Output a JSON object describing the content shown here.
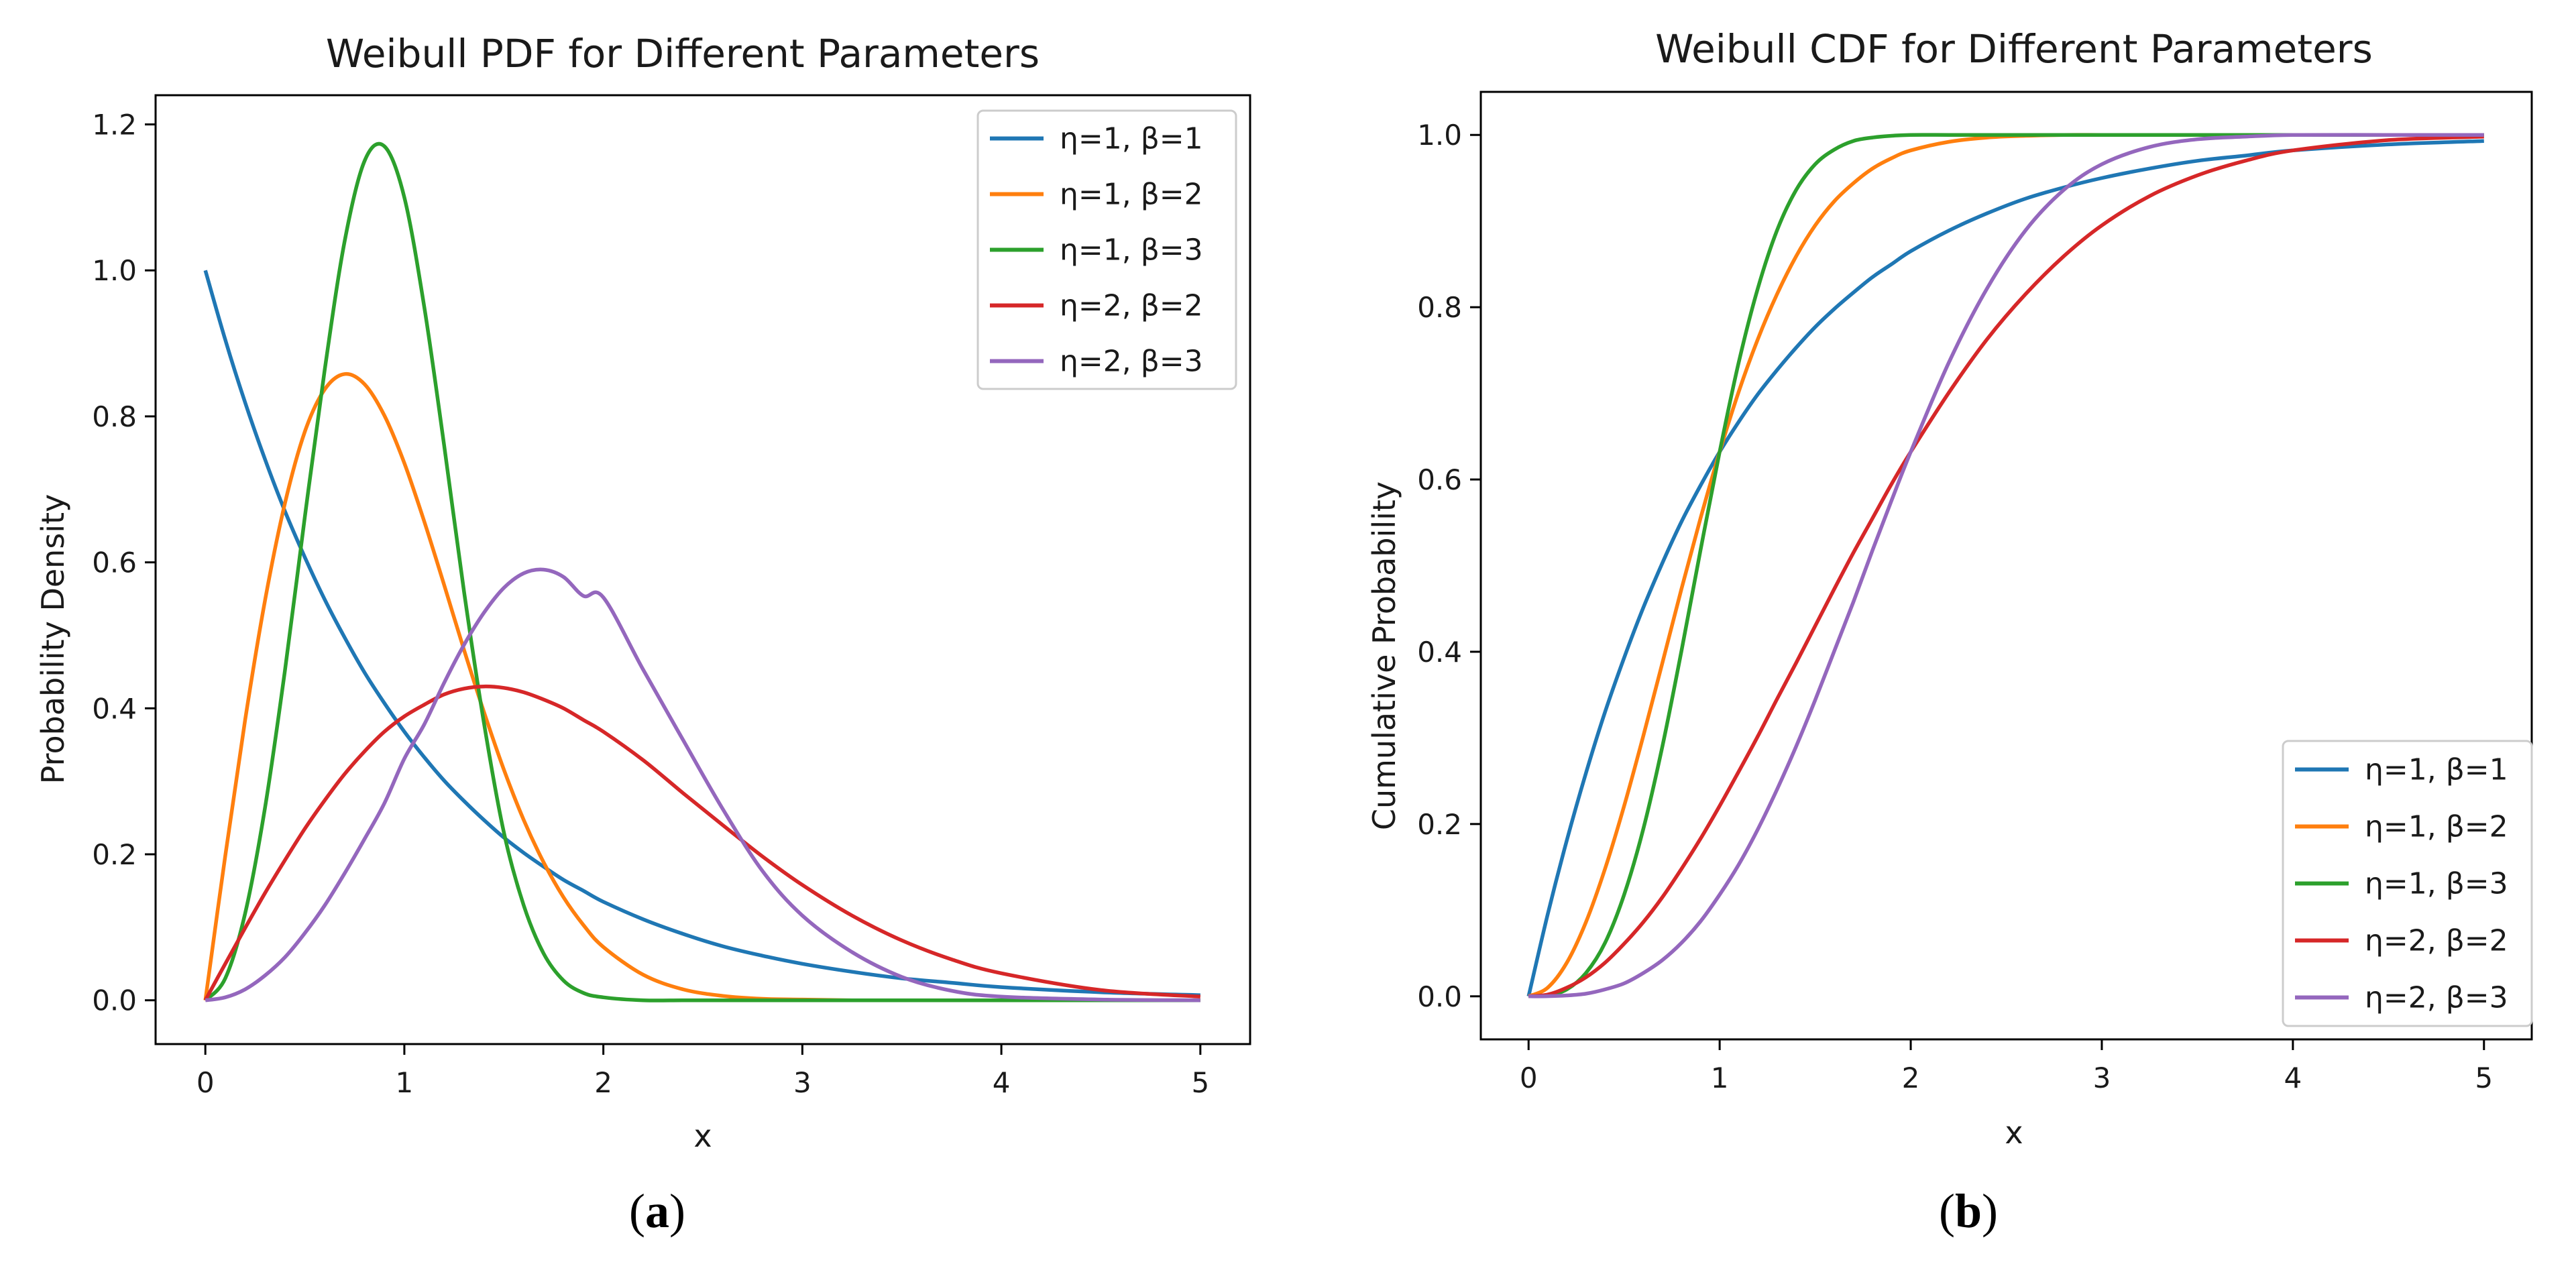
{
  "panels": {
    "a": {
      "caption_letter": "a"
    },
    "b": {
      "caption_letter": "b"
    }
  },
  "chart_data": [
    {
      "type": "line",
      "title": "Weibull PDF for Different Parameters",
      "xlabel": "x",
      "ylabel": "Probability Density",
      "xlim": [
        -0.25,
        5.25
      ],
      "ylim": [
        -0.06,
        1.24
      ],
      "xticks": [
        0,
        1,
        2,
        3,
        4,
        5
      ],
      "yticks": [
        0.0,
        0.2,
        0.4,
        0.6,
        0.8,
        1.0,
        1.2
      ],
      "xtick_labels": [
        "0",
        "1",
        "2",
        "3",
        "4",
        "5"
      ],
      "ytick_labels": [
        "0.0",
        "0.2",
        "0.4",
        "0.6",
        "0.8",
        "1.0",
        "1.2"
      ],
      "legend_position": "upper right",
      "grid": false,
      "x_samples": [
        0,
        0.1,
        0.2,
        0.3,
        0.4,
        0.5,
        0.6,
        0.7,
        0.8,
        0.9,
        1.0,
        1.1,
        1.2,
        1.3,
        1.4,
        1.5,
        1.6,
        1.7,
        1.8,
        1.9,
        2.0,
        2.2,
        2.4,
        2.6,
        2.8,
        3.0,
        3.25,
        3.5,
        3.75,
        4.0,
        4.5,
        5.0
      ],
      "series": [
        {
          "name": "η=1, β=1",
          "color": "#1f77b4",
          "y": [
            1.0,
            0.905,
            0.819,
            0.741,
            0.67,
            0.607,
            0.549,
            0.497,
            0.449,
            0.407,
            0.368,
            0.333,
            0.301,
            0.273,
            0.247,
            0.223,
            0.202,
            0.183,
            0.165,
            0.15,
            0.135,
            0.111,
            0.091,
            0.074,
            0.061,
            0.05,
            0.039,
            0.03,
            0.024,
            0.018,
            0.011,
            0.007
          ]
        },
        {
          "name": "η=1, β=2",
          "color": "#ff7f0e",
          "y": [
            0.0,
            0.198,
            0.384,
            0.548,
            0.681,
            0.779,
            0.837,
            0.858,
            0.844,
            0.801,
            0.736,
            0.656,
            0.569,
            0.48,
            0.395,
            0.316,
            0.247,
            0.189,
            0.141,
            0.103,
            0.073,
            0.035,
            0.015,
            0.006,
            0.002,
            0.001,
            0.0,
            0.0,
            0.0,
            0.0,
            0.0,
            0.0
          ]
        },
        {
          "name": "η=1, β=3",
          "color": "#2ca02c",
          "y": [
            0.0,
            0.03,
            0.119,
            0.264,
            0.452,
            0.662,
            0.864,
            1.04,
            1.15,
            1.17,
            1.1,
            0.95,
            0.76,
            0.56,
            0.38,
            0.23,
            0.13,
            0.064,
            0.027,
            0.01,
            0.004,
            0.0,
            0.0,
            0.0,
            0.0,
            0.0,
            0.0,
            0.0,
            0.0,
            0.0,
            0.0,
            0.0
          ]
        },
        {
          "name": "η=2, β=2",
          "color": "#d62728",
          "y": [
            0.0,
            0.05,
            0.099,
            0.147,
            0.192,
            0.235,
            0.274,
            0.31,
            0.341,
            0.368,
            0.389,
            0.405,
            0.419,
            0.427,
            0.43,
            0.428,
            0.422,
            0.412,
            0.4,
            0.384,
            0.368,
            0.329,
            0.284,
            0.24,
            0.197,
            0.158,
            0.116,
            0.082,
            0.056,
            0.037,
            0.014,
            0.005
          ]
        },
        {
          "name": "η=2, β=3",
          "color": "#9467bd",
          "y": [
            0.0,
            0.004,
            0.015,
            0.034,
            0.059,
            0.092,
            0.13,
            0.174,
            0.221,
            0.27,
            0.331,
            0.378,
            0.435,
            0.487,
            0.531,
            0.565,
            0.585,
            0.59,
            0.58,
            0.554,
            0.552,
            0.453,
            0.357,
            0.262,
            0.177,
            0.116,
            0.066,
            0.032,
            0.013,
            0.005,
            0.001,
            0.0
          ]
        }
      ]
    },
    {
      "type": "line",
      "title": "Weibull CDF for Different Parameters",
      "xlabel": "x",
      "ylabel": "Cumulative Probability",
      "xlim": [
        -0.25,
        5.25
      ],
      "ylim": [
        -0.05,
        1.05
      ],
      "xticks": [
        0,
        1,
        2,
        3,
        4,
        5
      ],
      "yticks": [
        0.0,
        0.2,
        0.4,
        0.6,
        0.8,
        1.0
      ],
      "xtick_labels": [
        "0",
        "1",
        "2",
        "3",
        "4",
        "5"
      ],
      "ytick_labels": [
        "0.0",
        "0.2",
        "0.4",
        "0.6",
        "0.8",
        "1.0"
      ],
      "legend_position": "lower right",
      "grid": false,
      "x_samples": [
        0,
        0.1,
        0.2,
        0.3,
        0.4,
        0.5,
        0.6,
        0.7,
        0.8,
        0.9,
        1.0,
        1.1,
        1.2,
        1.3,
        1.4,
        1.5,
        1.6,
        1.7,
        1.8,
        1.9,
        2.0,
        2.2,
        2.4,
        2.6,
        2.8,
        3.0,
        3.25,
        3.5,
        3.75,
        4.0,
        4.5,
        5.0
      ],
      "series": [
        {
          "name": "η=1, β=1",
          "color": "#1f77b4",
          "y": [
            0.0,
            0.095,
            0.181,
            0.259,
            0.33,
            0.393,
            0.451,
            0.503,
            0.551,
            0.593,
            0.632,
            0.667,
            0.699,
            0.727,
            0.753,
            0.777,
            0.798,
            0.817,
            0.835,
            0.85,
            0.865,
            0.889,
            0.909,
            0.926,
            0.939,
            0.95,
            0.961,
            0.97,
            0.976,
            0.982,
            0.989,
            0.993
          ]
        },
        {
          "name": "η=1, β=2",
          "color": "#ff7f0e",
          "y": [
            0.0,
            0.01,
            0.039,
            0.086,
            0.148,
            0.221,
            0.302,
            0.387,
            0.473,
            0.555,
            0.632,
            0.702,
            0.763,
            0.815,
            0.859,
            0.895,
            0.923,
            0.944,
            0.961,
            0.973,
            0.982,
            0.992,
            0.997,
            0.999,
            1.0,
            1.0,
            1.0,
            1.0,
            1.0,
            1.0,
            1.0,
            1.0
          ]
        },
        {
          "name": "η=1, β=3",
          "color": "#2ca02c",
          "y": [
            0.0,
            0.001,
            0.008,
            0.027,
            0.062,
            0.118,
            0.194,
            0.29,
            0.401,
            0.518,
            0.632,
            0.736,
            0.822,
            0.889,
            0.936,
            0.966,
            0.983,
            0.993,
            0.997,
            0.999,
            1.0,
            1.0,
            1.0,
            1.0,
            1.0,
            1.0,
            1.0,
            1.0,
            1.0,
            1.0,
            1.0,
            1.0
          ]
        },
        {
          "name": "η=2, β=2",
          "color": "#d62728",
          "y": [
            0.0,
            0.002,
            0.01,
            0.022,
            0.039,
            0.061,
            0.086,
            0.115,
            0.148,
            0.183,
            0.221,
            0.261,
            0.302,
            0.345,
            0.387,
            0.43,
            0.473,
            0.515,
            0.555,
            0.595,
            0.632,
            0.701,
            0.763,
            0.815,
            0.859,
            0.895,
            0.929,
            0.953,
            0.97,
            0.982,
            0.994,
            0.998
          ]
        },
        {
          "name": "η=2, β=3",
          "color": "#9467bd",
          "y": [
            0.0,
            0.0001,
            0.001,
            0.003,
            0.008,
            0.015,
            0.027,
            0.042,
            0.062,
            0.087,
            0.118,
            0.153,
            0.194,
            0.24,
            0.29,
            0.344,
            0.401,
            0.458,
            0.518,
            0.576,
            0.632,
            0.736,
            0.822,
            0.889,
            0.936,
            0.966,
            0.986,
            0.995,
            0.998,
            1.0,
            1.0,
            1.0
          ]
        }
      ]
    }
  ]
}
